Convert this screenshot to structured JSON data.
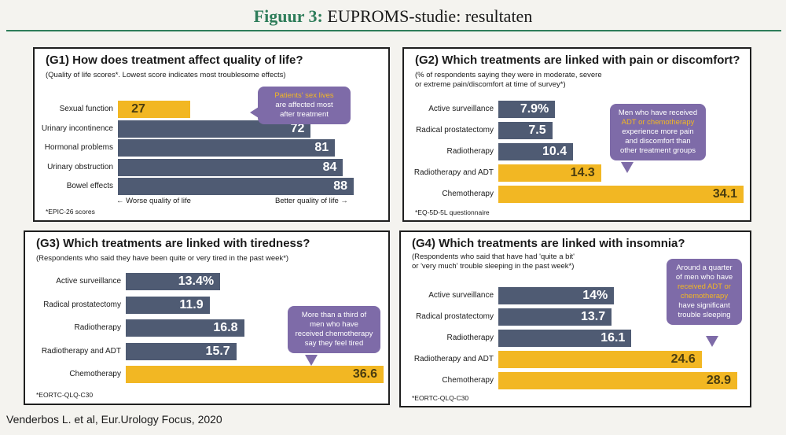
{
  "figure": {
    "label": "Figuur 3:",
    "title": "EUPROMS-studie: resultaten",
    "citation": "Venderbos L. et al, Eur.Urology Focus, 2020"
  },
  "colors": {
    "slate": "#4f5b73",
    "gold": "#f2b723",
    "bubble": "#7e6ba8",
    "rule": "#2e7d5a"
  },
  "chart_data": [
    {
      "id": "G1",
      "type": "bar",
      "title": "(G1) How does treatment affect quality of life?",
      "subtitle": [
        "(Quality of life scores*. Lowest score indicates most troublesome effects)"
      ],
      "categories": [
        "Sexual function",
        "Urinary incontinence",
        "Hormonal problems",
        "Urinary obstruction",
        "Bowel effects"
      ],
      "values": [
        27,
        72,
        81,
        84,
        88
      ],
      "labels": [
        "27",
        "72",
        "81",
        "84",
        "88"
      ],
      "highlight": [
        true,
        false,
        false,
        false,
        false
      ],
      "xlim": [
        0,
        88
      ],
      "axis_left": "Worse quality of life",
      "axis_right": "Better quality of life",
      "footnote": "*EPIC-26 scores",
      "callout": {
        "lines": [
          "Patients' sex lives",
          "are affected most",
          "after treatment"
        ],
        "highlight_line": 0
      }
    },
    {
      "id": "G2",
      "type": "bar",
      "title": "(G2) Which treatments are linked with pain or discomfort?",
      "subtitle": [
        "(% of respondents saying they were in moderate, severe",
        "or extreme pain/discomfort at time of survey*)"
      ],
      "categories": [
        "Active surveillance",
        "Radical prostatectomy",
        "Radiotherapy",
        "Radiotherapy and ADT",
        "Chemotherapy"
      ],
      "values": [
        7.9,
        7.5,
        10.4,
        14.3,
        34.1
      ],
      "labels": [
        "7.9%",
        "7.5",
        "10.4",
        "14.3",
        "34.1"
      ],
      "highlight": [
        false,
        false,
        false,
        true,
        true
      ],
      "xlim": [
        0,
        34.1
      ],
      "footnote": "*EQ-5D-5L questionnaire",
      "callout": {
        "lines": [
          "Men who have received",
          "ADT or chemotherapy",
          "experience more pain",
          "and discomfort than",
          "other treatment groups"
        ],
        "highlight_line": 1
      }
    },
    {
      "id": "G3",
      "type": "bar",
      "title": "(G3) Which treatments are linked with tiredness?",
      "subtitle": [
        "(Respondents who said they have been quite or very tired in the past week*)"
      ],
      "categories": [
        "Active surveillance",
        "Radical prostatectomy",
        "Radiotherapy",
        "Radiotherapy and ADT",
        "Chemotherapy"
      ],
      "values": [
        13.4,
        11.9,
        16.8,
        15.7,
        36.6
      ],
      "labels": [
        "13.4%",
        "11.9",
        "16.8",
        "15.7",
        "36.6"
      ],
      "highlight": [
        false,
        false,
        false,
        false,
        true
      ],
      "xlim": [
        0,
        36.6
      ],
      "footnote": "*EORTC-QLQ-C30",
      "callout": {
        "lines": [
          "More than a third of",
          "men who have",
          "received chemotherapy",
          "say they feel tired"
        ],
        "highlight_line": -1
      }
    },
    {
      "id": "G4",
      "type": "bar",
      "title": "(G4) Which treatments are linked with insomnia?",
      "subtitle": [
        "(Respondents who said that have had 'quite a bit'",
        "or 'very much' trouble sleeping in the past week*)"
      ],
      "categories": [
        "Active surveillance",
        "Radical prostatectomy",
        "Radiotherapy",
        "Radiotherapy and ADT",
        "Chemotherapy"
      ],
      "values": [
        14,
        13.7,
        16.1,
        24.6,
        28.9
      ],
      "labels": [
        "14%",
        "13.7",
        "16.1",
        "24.6",
        "28.9"
      ],
      "highlight": [
        false,
        false,
        false,
        true,
        true
      ],
      "xlim": [
        0,
        28.9
      ],
      "footnote": "*EORTC-QLQ-C30",
      "callout": {
        "lines": [
          "Around a quarter",
          "of men who have",
          "received ADT or",
          "chemotherapy",
          "have significant",
          "trouble sleeping"
        ],
        "highlight_line": -2
      }
    }
  ]
}
